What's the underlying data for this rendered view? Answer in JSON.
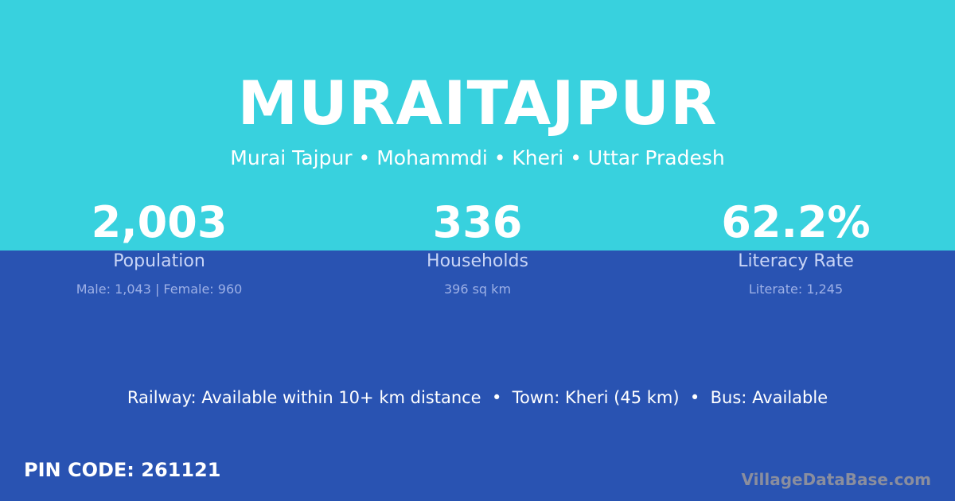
{
  "header": {
    "title": "MURAITAJPUR",
    "subtitle": "Murai Tajpur • Mohammdi • Kheri • Uttar Pradesh"
  },
  "stats": [
    {
      "value": "2,003",
      "label": "Population",
      "detail": "Male: 1,043 | Female: 960"
    },
    {
      "value": "336",
      "label": "Households",
      "detail": "396 sq km"
    },
    {
      "value": "62.2%",
      "label": "Literacy Rate",
      "detail": "Literate: 1,245"
    }
  ],
  "transport": "Railway: Available within 10+ km distance  •  Town: Kheri (45 km)  •  Bus: Available",
  "pin_code": "PIN CODE: 261121",
  "watermark": "VillageDataBase.com",
  "colors": {
    "top_background": "#38D1DE",
    "bottom_background": "#2953B2"
  }
}
